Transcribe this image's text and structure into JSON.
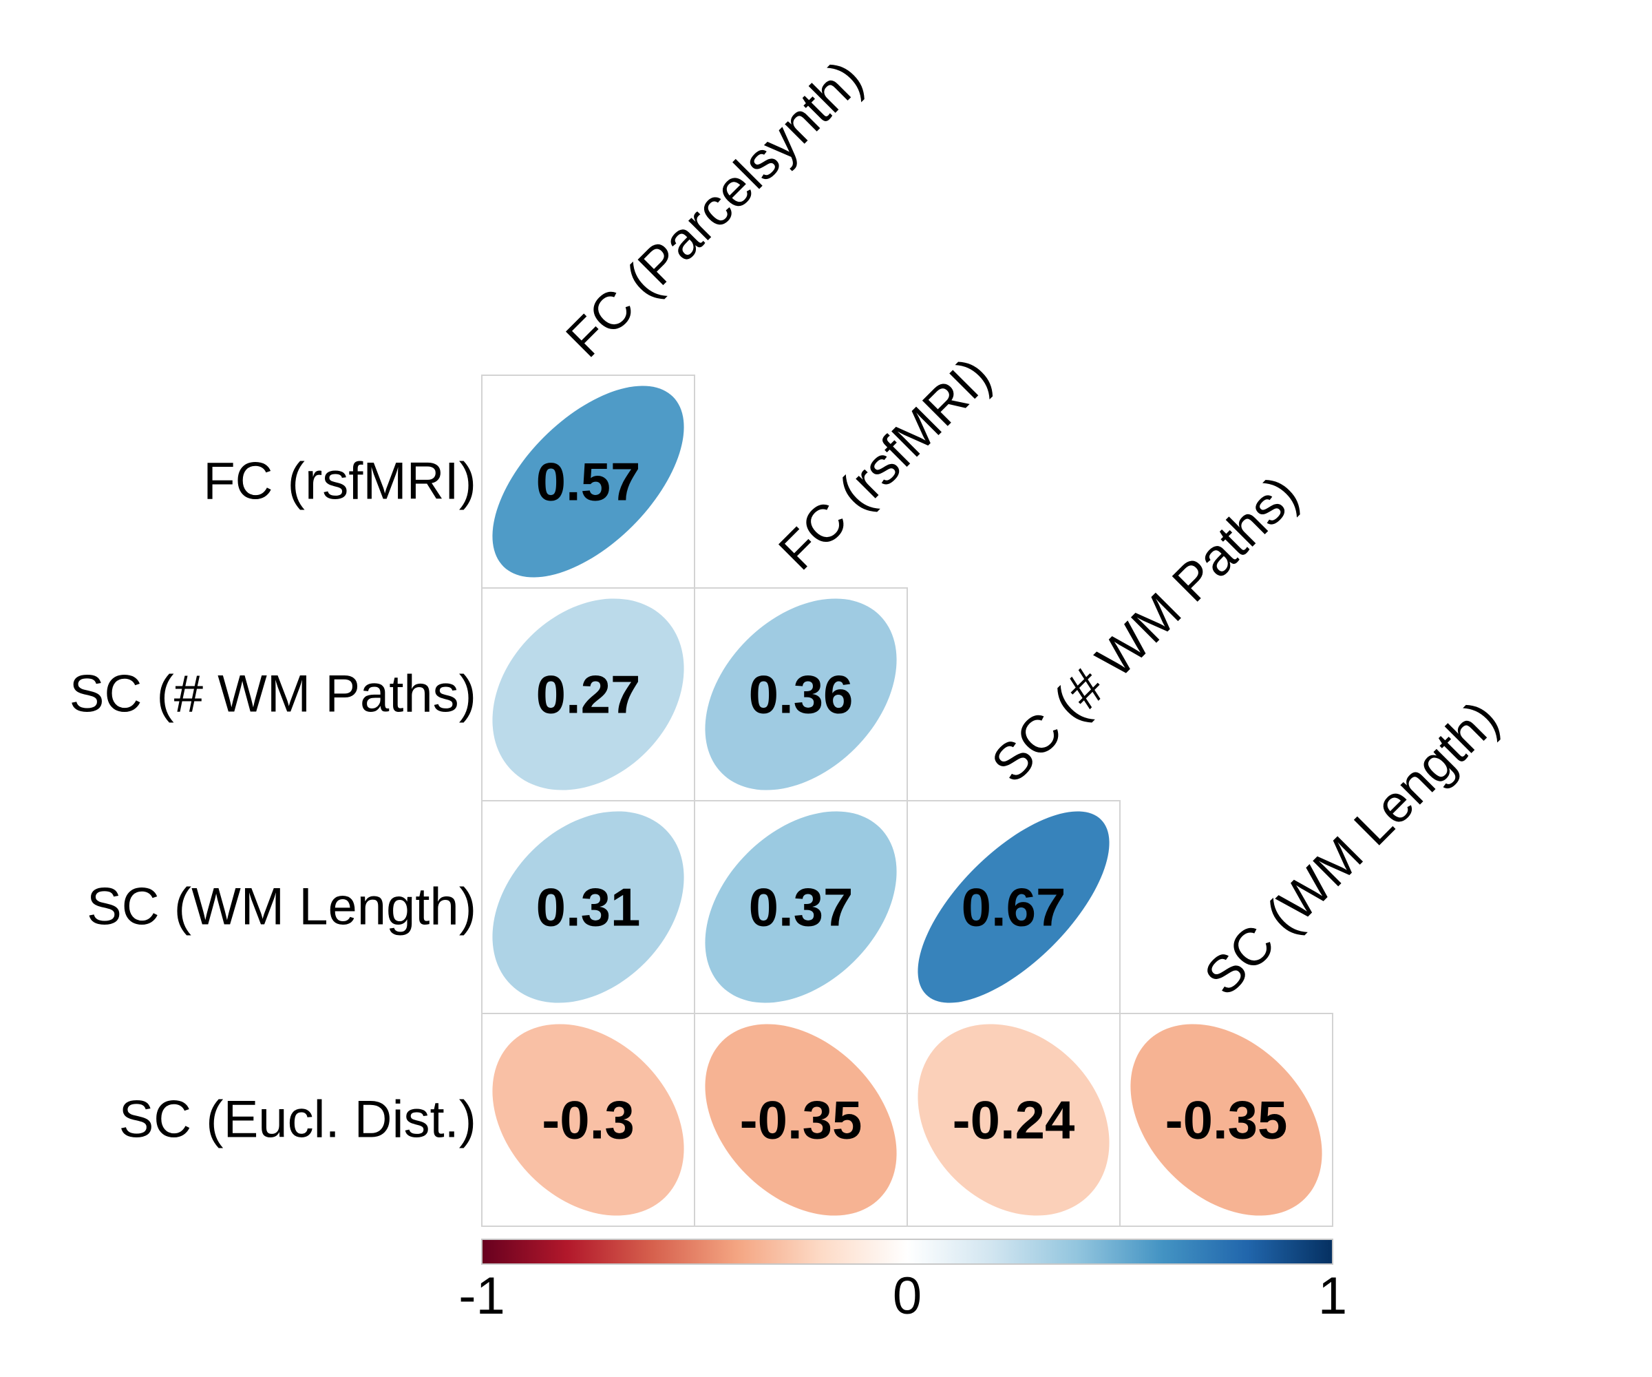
{
  "chart_data": {
    "type": "heatmap",
    "style": "ellipse correlation matrix (lower triangle)",
    "columns": [
      "FC (Parcelsynth)",
      "FC (rsfMRI)",
      "SC (# WM Paths)",
      "SC (WM Length)"
    ],
    "rows": [
      "FC (rsfMRI)",
      "SC (# WM Paths)",
      "SC (WM Length)",
      "SC (Eucl. Dist.)"
    ],
    "cells": [
      {
        "row": 0,
        "col": 0,
        "value": 0.57,
        "label": "0.57"
      },
      {
        "row": 1,
        "col": 0,
        "value": 0.27,
        "label": "0.27"
      },
      {
        "row": 1,
        "col": 1,
        "value": 0.36,
        "label": "0.36"
      },
      {
        "row": 2,
        "col": 0,
        "value": 0.31,
        "label": "0.31"
      },
      {
        "row": 2,
        "col": 1,
        "value": 0.37,
        "label": "0.37"
      },
      {
        "row": 2,
        "col": 2,
        "value": 0.67,
        "label": "0.67"
      },
      {
        "row": 3,
        "col": 0,
        "value": -0.3,
        "label": "-0.3"
      },
      {
        "row": 3,
        "col": 1,
        "value": -0.35,
        "label": "-0.35"
      },
      {
        "row": 3,
        "col": 2,
        "value": -0.24,
        "label": "-0.24"
      },
      {
        "row": 3,
        "col": 3,
        "value": -0.35,
        "label": "-0.35"
      }
    ],
    "colorbar": {
      "range": [
        -1,
        1
      ],
      "tick_labels": [
        "-1",
        "0",
        "1"
      ],
      "colors": [
        "#67001f",
        "#b2182b",
        "#d6604d",
        "#f4a582",
        "#fddbc7",
        "#ffffff",
        "#d1e5f0",
        "#92c5de",
        "#4393c3",
        "#2166ac",
        "#053061"
      ]
    },
    "grid": true,
    "legend": "bottom"
  }
}
